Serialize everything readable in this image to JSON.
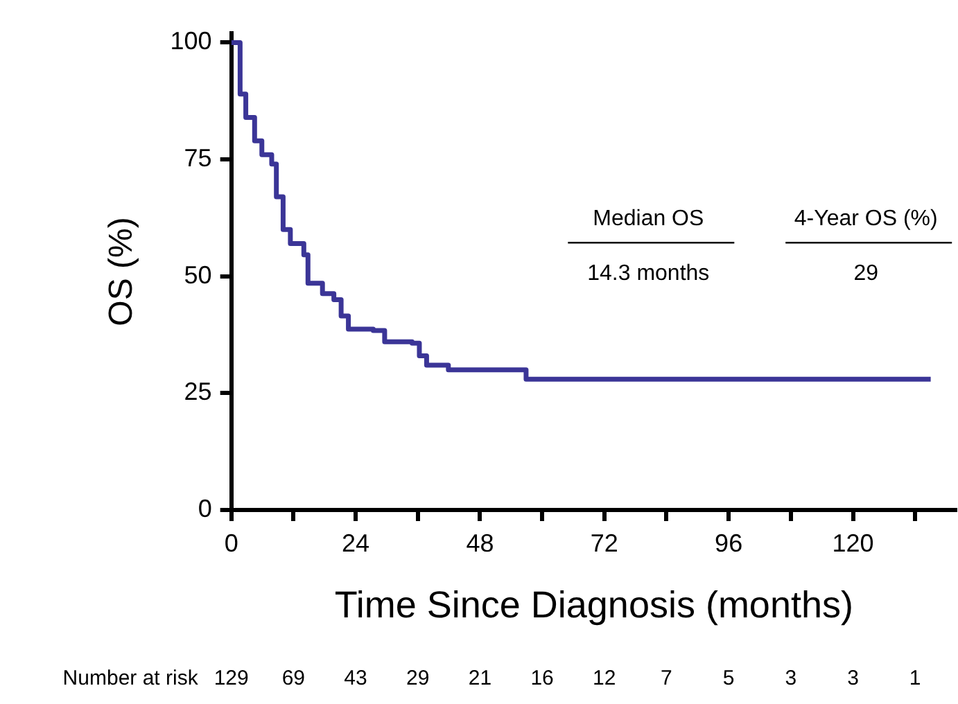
{
  "chart_data": {
    "type": "step",
    "ylabel": "OS (%)",
    "xlabel": "Time Since Diagnosis (months)",
    "x": [
      0,
      1.7,
      2.8,
      4.5,
      5.9,
      7.8,
      8.7,
      10,
      11.4,
      14,
      14.8,
      17.6,
      19.8,
      21.2,
      22.6,
      27.4,
      29.6,
      34.9,
      36.3,
      37.7,
      41.9,
      56.9,
      135
    ],
    "series": [
      {
        "color": "#3b3597",
        "values": [
          100,
          89,
          84,
          79,
          76,
          74,
          67,
          60,
          57,
          54.6,
          48.5,
          46.3,
          45,
          41.5,
          38.7,
          38.4,
          36,
          35.7,
          33,
          31,
          30,
          28,
          28
        ]
      }
    ],
    "xlim": [
      0,
      140
    ],
    "ylim": [
      0,
      102
    ],
    "xticks": [
      0,
      {
        "value": 12,
        "label": null
      },
      24,
      {
        "value": 36,
        "label": null
      },
      48,
      {
        "value": 60,
        "label": null
      },
      72,
      {
        "value": 84,
        "label": null
      },
      96,
      {
        "value": 108,
        "label": null
      },
      120,
      {
        "value": 132,
        "label": null
      }
    ],
    "yticks": [
      0,
      25,
      50,
      75,
      100
    ],
    "grid": false,
    "legend": false,
    "marker": "none",
    "line_style": "solid",
    "annotations": [
      "Median OS",
      "4-Year OS (%)",
      "14.3 months",
      "29",
      "Number at risk",
      "129",
      "69",
      "43",
      "29",
      "21",
      "16",
      "12",
      "7",
      "5",
      "3",
      "3",
      "1"
    ]
  }
}
